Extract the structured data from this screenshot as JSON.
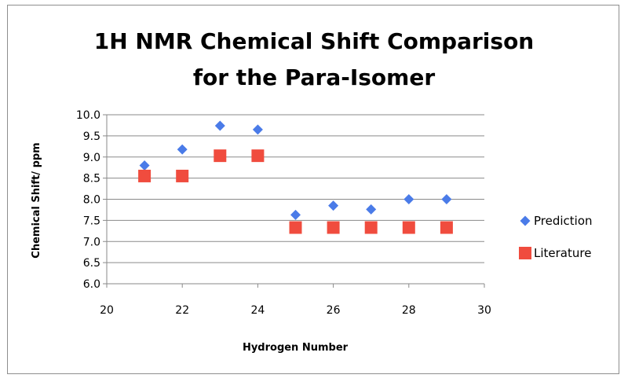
{
  "chart_data": {
    "type": "scatter",
    "title_line1": "1H NMR Chemical Shift Comparison",
    "title_line2": "for the Para-Isomer",
    "xlabel": "Hydrogen Number",
    "ylabel": "Chemical Shift/ ppm",
    "xlim": [
      20,
      30
    ],
    "ylim": [
      6.0,
      10.0
    ],
    "x_ticks": [
      20,
      22,
      24,
      26,
      28,
      30
    ],
    "y_ticks": [
      "6.0",
      "6.5",
      "7.0",
      "7.5",
      "8.0",
      "8.5",
      "9.0",
      "9.5",
      "10.0"
    ],
    "grid": "horizontal",
    "legend_position": "right",
    "series": [
      {
        "name": "Prediction",
        "marker": "diamond",
        "color": "#4a7be8",
        "points": [
          {
            "x": 21,
            "y": 8.8
          },
          {
            "x": 22,
            "y": 9.18
          },
          {
            "x": 23,
            "y": 9.74
          },
          {
            "x": 24,
            "y": 9.65
          },
          {
            "x": 25,
            "y": 7.63
          },
          {
            "x": 26,
            "y": 7.85
          },
          {
            "x": 27,
            "y": 7.76
          },
          {
            "x": 28,
            "y": 8.0
          },
          {
            "x": 29,
            "y": 8.0
          }
        ]
      },
      {
        "name": "Literature",
        "marker": "square",
        "color": "#f04c3e",
        "points": [
          {
            "x": 21,
            "y": 8.55
          },
          {
            "x": 22,
            "y": 8.55
          },
          {
            "x": 23,
            "y": 9.03
          },
          {
            "x": 24,
            "y": 9.03
          },
          {
            "x": 25,
            "y": 7.33
          },
          {
            "x": 26,
            "y": 7.33
          },
          {
            "x": 27,
            "y": 7.33
          },
          {
            "x": 28,
            "y": 7.33
          },
          {
            "x": 29,
            "y": 7.33
          }
        ]
      }
    ]
  }
}
